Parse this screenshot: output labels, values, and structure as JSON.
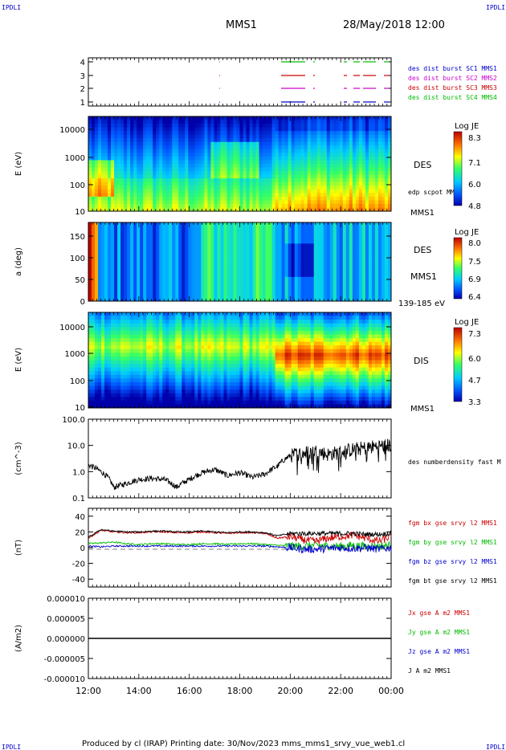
{
  "header": {
    "corner_left": "IPDLI",
    "corner_right": "IPDLI",
    "spacecraft": "MMS1",
    "datetime": "28/May/2018 12:00"
  },
  "footer": {
    "text": "Produced by cl (IRAP)   Printing date: 30/Nov/2023   mms_mms1_srvy_vue_web1.cl",
    "corner_left": "IPDLI",
    "corner_right": "IPDLI"
  },
  "time_axis": {
    "ticks": [
      "12:00",
      "14:00",
      "16:00",
      "18:00",
      "20:00",
      "22:00",
      "00:00"
    ],
    "start_hour": 12,
    "end_hour": 24
  },
  "colors": {
    "blue": "#0000cc",
    "magenta": "#cc00cc",
    "red": "#cc0000",
    "green": "#00bb00",
    "black": "#000000"
  },
  "panels": {
    "availability": {
      "yticks": [
        "4",
        "3",
        "2",
        "1"
      ],
      "legend": [
        {
          "text": "des dist burst SC1 MMS1",
          "color": "#0000cc"
        },
        {
          "text": "des dist burst SC2 MMS2",
          "color": "#cc00cc"
        },
        {
          "text": "des dist burst SC3 MMS3",
          "color": "#cc0000"
        },
        {
          "text": "des dist burst SC4 MMS4",
          "color": "#00bb00"
        }
      ]
    },
    "des_spectrogram": {
      "ylabel": "E (eV)",
      "yticks": [
        "10000",
        "1000",
        "100",
        "10"
      ],
      "label": "DES",
      "sublabel": "edp scpot MMS1",
      "footlabel": "MMS1",
      "colorbar": {
        "title": "Log JE",
        "ticks": [
          "8.3",
          "7.1",
          "6.0",
          "4.8"
        ]
      }
    },
    "des_pitch": {
      "ylabel": "a (deg)",
      "yticks": [
        "150",
        "100",
        "50",
        "0"
      ],
      "label": "DES",
      "sublabel": "MMS1",
      "footlabel": "139-185 eV",
      "colorbar": {
        "title": "Log JE",
        "ticks": [
          "8.0",
          "7.5",
          "6.9",
          "6.4"
        ]
      }
    },
    "dis_spectrogram": {
      "ylabel": "E (eV)",
      "yticks": [
        "10000",
        "1000",
        "100",
        "10"
      ],
      "label": "DIS",
      "footlabel": "MMS1",
      "colorbar": {
        "title": "Log JE",
        "ticks": [
          "7.3",
          "6.0",
          "4.7",
          "3.3"
        ]
      }
    },
    "density": {
      "ylabel": "(cm^-3)",
      "yticks": [
        "100.0",
        "10.0",
        "1.0",
        "0.1"
      ],
      "legend": "des numberdensity fast M"
    },
    "bfield": {
      "ylabel": "(nT)",
      "yticks": [
        "40",
        "20",
        "0",
        "-20",
        "-40"
      ],
      "legend": [
        {
          "text": "fgm bx gse srvy l2 MMS1",
          "color": "#cc0000"
        },
        {
          "text": "fgm by gse srvy l2 MMS1",
          "color": "#00bb00"
        },
        {
          "text": "fgm bz gse srvy l2 MMS1",
          "color": "#0000cc"
        },
        {
          "text": "fgm bt gse srvy l2 MMS1",
          "color": "#000000"
        }
      ]
    },
    "current": {
      "ylabel": "(A/m2)",
      "yticks": [
        "0.000010",
        "0.000005",
        "0.000000",
        "-0.000005",
        "-0.000010"
      ],
      "legend": [
        {
          "text": "Jx gse A m2 MMS1",
          "color": "#cc0000"
        },
        {
          "text": "Jy gse A m2 MMS1",
          "color": "#00bb00"
        },
        {
          "text": "Jz gse A m2 MMS1",
          "color": "#0000cc"
        },
        {
          "text": "J A m2 MMS1",
          "color": "#000000"
        }
      ]
    }
  },
  "chart_data": [
    {
      "type": "line",
      "title": "des numberdensity fast M",
      "ylabel": "(cm^-3)",
      "yscale": "log",
      "ylim": [
        0.1,
        100.0
      ],
      "x": [
        12.0,
        12.5,
        13.0,
        13.5,
        14.0,
        14.5,
        15.0,
        15.5,
        16.0,
        16.5,
        17.0,
        17.5,
        18.0,
        18.5,
        19.0,
        19.5,
        20.0,
        20.5,
        21.0,
        21.5,
        22.0,
        22.5,
        23.0,
        23.5,
        24.0
      ],
      "values": [
        1.8,
        1.0,
        0.25,
        0.35,
        0.5,
        0.55,
        0.5,
        0.25,
        0.5,
        0.9,
        1.2,
        0.7,
        0.9,
        0.6,
        0.8,
        1.6,
        4.0,
        5.0,
        6.0,
        4.5,
        5.5,
        7.0,
        8.0,
        9.5,
        10.0
      ]
    },
    {
      "type": "line",
      "title": "",
      "ylabel": "(nT)",
      "ylim": [
        -50,
        50
      ],
      "x": [
        12.0,
        12.5,
        13.0,
        13.5,
        14.0,
        14.5,
        15.0,
        15.5,
        16.0,
        16.5,
        17.0,
        17.5,
        18.0,
        18.5,
        19.0,
        19.5,
        20.0,
        20.5,
        21.0,
        21.5,
        22.0,
        22.5,
        23.0,
        23.5,
        24.0
      ],
      "series": [
        {
          "name": "fgm bx gse srvy l2 MMS1",
          "values": [
            12,
            22,
            20,
            19,
            19,
            20,
            20,
            19,
            19,
            20,
            19,
            18,
            19,
            19,
            18,
            12,
            14,
            10,
            8,
            12,
            14,
            16,
            12,
            8,
            14
          ]
        },
        {
          "name": "fgm by gse srvy l2 MMS1",
          "values": [
            5,
            6,
            7,
            5,
            4,
            5,
            5,
            4,
            4,
            5,
            5,
            4,
            5,
            5,
            4,
            3,
            2,
            2,
            3,
            2,
            2,
            3,
            2,
            2,
            3
          ]
        },
        {
          "name": "fgm bz gse srvy l2 MMS1",
          "values": [
            2,
            1,
            2,
            2,
            2,
            2,
            2,
            2,
            2,
            2,
            2,
            2,
            2,
            2,
            2,
            1,
            0,
            -2,
            -2,
            -1,
            0,
            -1,
            0,
            -2,
            0
          ]
        },
        {
          "name": "fgm bt gse srvy l2 MMS1",
          "values": [
            13,
            23,
            21,
            20,
            20,
            21,
            21,
            20,
            20,
            21,
            20,
            19,
            20,
            20,
            19,
            15,
            18,
            18,
            18,
            18,
            18,
            18,
            17,
            17,
            18
          ]
        }
      ]
    },
    {
      "type": "line",
      "title": "",
      "ylabel": "(A/m2)",
      "ylim": [
        -1e-05,
        1e-05
      ],
      "x": [
        12.0,
        24.0
      ],
      "series": [
        {
          "name": "J A m2 MMS1",
          "values": [
            0.0,
            0.0
          ]
        }
      ]
    }
  ]
}
